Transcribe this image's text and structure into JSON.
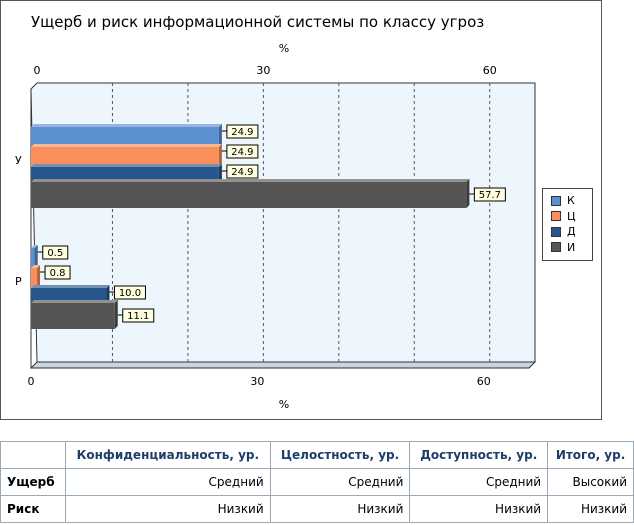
{
  "chart_data": {
    "type": "bar",
    "orientation": "horizontal",
    "title": "Ущерб и риск информационной системы по классу угроз",
    "xlabel": "%",
    "categories": [
      "У",
      "Р"
    ],
    "xlim": [
      0,
      66
    ],
    "ticks": [
      "0",
      "30",
      "60"
    ],
    "grid": true,
    "legend_position": "right",
    "series": [
      {
        "name": "К",
        "color": "#5b8fcf",
        "values": [
          24.9,
          0.5
        ],
        "labels": [
          "24.9",
          "0.5"
        ]
      },
      {
        "name": "Ц",
        "color": "#f98f5b",
        "values": [
          24.9,
          0.8
        ],
        "labels": [
          "24.9",
          "0.8"
        ]
      },
      {
        "name": "Д",
        "color": "#27568c",
        "values": [
          24.9,
          10.0
        ],
        "labels": [
          "24.9",
          "10.0"
        ]
      },
      {
        "name": "И",
        "color": "#555555",
        "values": [
          57.7,
          11.1
        ],
        "labels": [
          "57.7",
          "11.1"
        ]
      }
    ]
  },
  "table": {
    "headers": [
      "",
      "Конфиденциальность, ур.",
      "Целостность, ур.",
      "Доступность, ур.",
      "Итого, ур."
    ],
    "rows": [
      [
        "Ущерб",
        "Средний",
        "Средний",
        "Средний",
        "Высокий"
      ],
      [
        "Риск",
        "Низкий",
        "Низкий",
        "Низкий",
        "Низкий"
      ]
    ]
  }
}
